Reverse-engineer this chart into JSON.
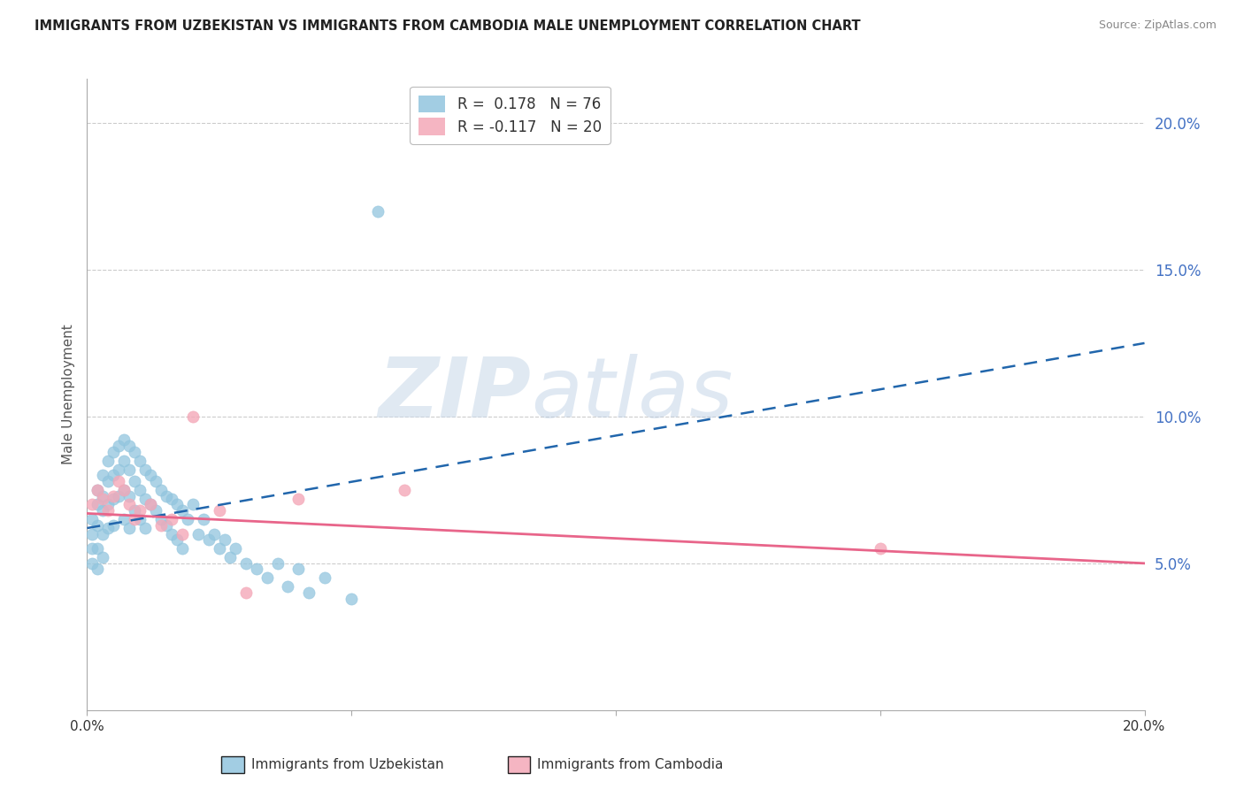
{
  "title": "IMMIGRANTS FROM UZBEKISTAN VS IMMIGRANTS FROM CAMBODIA MALE UNEMPLOYMENT CORRELATION CHART",
  "source": "Source: ZipAtlas.com",
  "ylabel": "Male Unemployment",
  "r_uzbekistan": 0.178,
  "n_uzbekistan": 76,
  "r_cambodia": -0.117,
  "n_cambodia": 20,
  "color_uzbekistan": "#92c5de",
  "color_cambodia": "#f4a8b8",
  "trend_uzbekistan": "#2166ac",
  "trend_cambodia": "#e8658a",
  "watermark_zip": "ZIP",
  "watermark_atlas": "atlas",
  "xmin": 0.0,
  "xmax": 0.2,
  "ymin": 0.0,
  "ymax": 0.215,
  "yticks": [
    0.05,
    0.1,
    0.15,
    0.2
  ],
  "ytick_labels": [
    "5.0%",
    "10.0%",
    "15.0%",
    "20.0%"
  ],
  "uz_trend_x": [
    0.0,
    0.2
  ],
  "uz_trend_y": [
    0.062,
    0.125
  ],
  "cam_trend_x": [
    0.0,
    0.2
  ],
  "cam_trend_y": [
    0.067,
    0.05
  ],
  "uzbekistan_x": [
    0.001,
    0.001,
    0.001,
    0.001,
    0.002,
    0.002,
    0.002,
    0.002,
    0.002,
    0.003,
    0.003,
    0.003,
    0.003,
    0.003,
    0.004,
    0.004,
    0.004,
    0.004,
    0.005,
    0.005,
    0.005,
    0.005,
    0.006,
    0.006,
    0.006,
    0.007,
    0.007,
    0.007,
    0.007,
    0.008,
    0.008,
    0.008,
    0.008,
    0.009,
    0.009,
    0.009,
    0.01,
    0.01,
    0.01,
    0.011,
    0.011,
    0.011,
    0.012,
    0.012,
    0.013,
    0.013,
    0.014,
    0.014,
    0.015,
    0.015,
    0.016,
    0.016,
    0.017,
    0.017,
    0.018,
    0.018,
    0.019,
    0.02,
    0.021,
    0.022,
    0.023,
    0.024,
    0.025,
    0.026,
    0.027,
    0.028,
    0.03,
    0.032,
    0.034,
    0.036,
    0.038,
    0.04,
    0.042,
    0.045,
    0.05,
    0.055
  ],
  "uzbekistan_y": [
    0.065,
    0.06,
    0.055,
    0.05,
    0.075,
    0.07,
    0.063,
    0.055,
    0.048,
    0.08,
    0.073,
    0.068,
    0.06,
    0.052,
    0.085,
    0.078,
    0.07,
    0.062,
    0.088,
    0.08,
    0.072,
    0.063,
    0.09,
    0.082,
    0.073,
    0.092,
    0.085,
    0.075,
    0.065,
    0.09,
    0.082,
    0.073,
    0.062,
    0.088,
    0.078,
    0.068,
    0.085,
    0.075,
    0.065,
    0.082,
    0.072,
    0.062,
    0.08,
    0.07,
    0.078,
    0.068,
    0.075,
    0.065,
    0.073,
    0.063,
    0.072,
    0.06,
    0.07,
    0.058,
    0.068,
    0.055,
    0.065,
    0.07,
    0.06,
    0.065,
    0.058,
    0.06,
    0.055,
    0.058,
    0.052,
    0.055,
    0.05,
    0.048,
    0.045,
    0.05,
    0.042,
    0.048,
    0.04,
    0.045,
    0.038,
    0.17
  ],
  "cambodia_x": [
    0.001,
    0.002,
    0.003,
    0.004,
    0.005,
    0.006,
    0.007,
    0.008,
    0.009,
    0.01,
    0.012,
    0.014,
    0.016,
    0.018,
    0.02,
    0.025,
    0.03,
    0.04,
    0.06,
    0.15
  ],
  "cambodia_y": [
    0.07,
    0.075,
    0.072,
    0.068,
    0.073,
    0.078,
    0.075,
    0.07,
    0.065,
    0.068,
    0.07,
    0.063,
    0.065,
    0.06,
    0.1,
    0.068,
    0.04,
    0.072,
    0.075,
    0.055
  ]
}
